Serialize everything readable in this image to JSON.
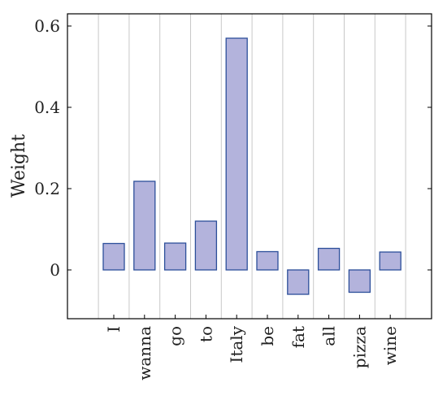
{
  "chart_data": {
    "type": "bar",
    "categories": [
      "I",
      "wanna",
      "go",
      "to",
      "Italy",
      "be",
      "fat",
      "all",
      "pizza",
      "wine"
    ],
    "values": [
      0.065,
      0.218,
      0.066,
      0.12,
      0.57,
      0.045,
      -0.06,
      0.053,
      -0.055,
      0.044
    ],
    "title": "",
    "xlabel": "",
    "ylabel": "Weight",
    "ylim": [
      -0.12,
      0.63
    ],
    "yticks": [
      0,
      0.2,
      0.4,
      0.6
    ],
    "ytick_labels": [
      "0",
      "0.2",
      "0.4",
      "0.6"
    ],
    "grid": "vertical",
    "colors": {
      "bar_fill": "#b3b3dc",
      "bar_stroke": "#2c4f9a",
      "grid": "#c8c8c8",
      "axis": "#000000"
    }
  }
}
